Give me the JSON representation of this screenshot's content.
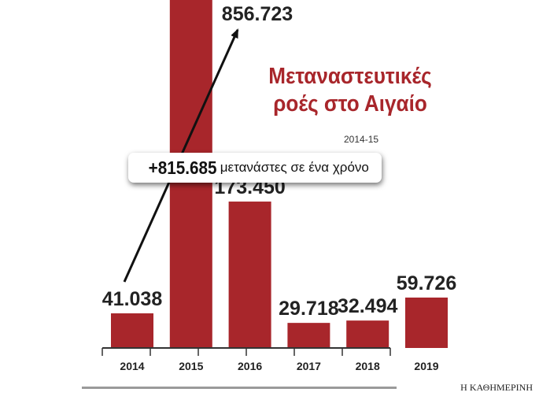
{
  "title_line1": "Μεταναστευτικές",
  "title_line2": "ροές στο Αιγαίο",
  "subtitle": "2014-15",
  "callout": {
    "value": "+815.685",
    "text": "μετανάστες σε ένα χρόνο"
  },
  "credit": "Η ΚΑΘΗΜΕΡΙΝΗ",
  "colors": {
    "bar": "#a8262b",
    "title": "#a8262b",
    "axis": "#333333"
  },
  "chart_data": {
    "type": "bar",
    "categories": [
      "2014",
      "2015",
      "2016",
      "2017",
      "2018",
      "2019"
    ],
    "values": [
      41038,
      856723,
      173450,
      29718,
      32494,
      59726
    ],
    "value_labels": [
      "41.038",
      "856.723",
      "173.450",
      "29.718",
      "32.494",
      "59.726"
    ],
    "title": "Μεταναστευτικές ροές στο Αιγαίο",
    "subtitle": "2014-15",
    "xlabel": "",
    "ylabel": "",
    "grid": false,
    "annotation": "+815.685 μετανάστες σε ένα χρόνο"
  }
}
